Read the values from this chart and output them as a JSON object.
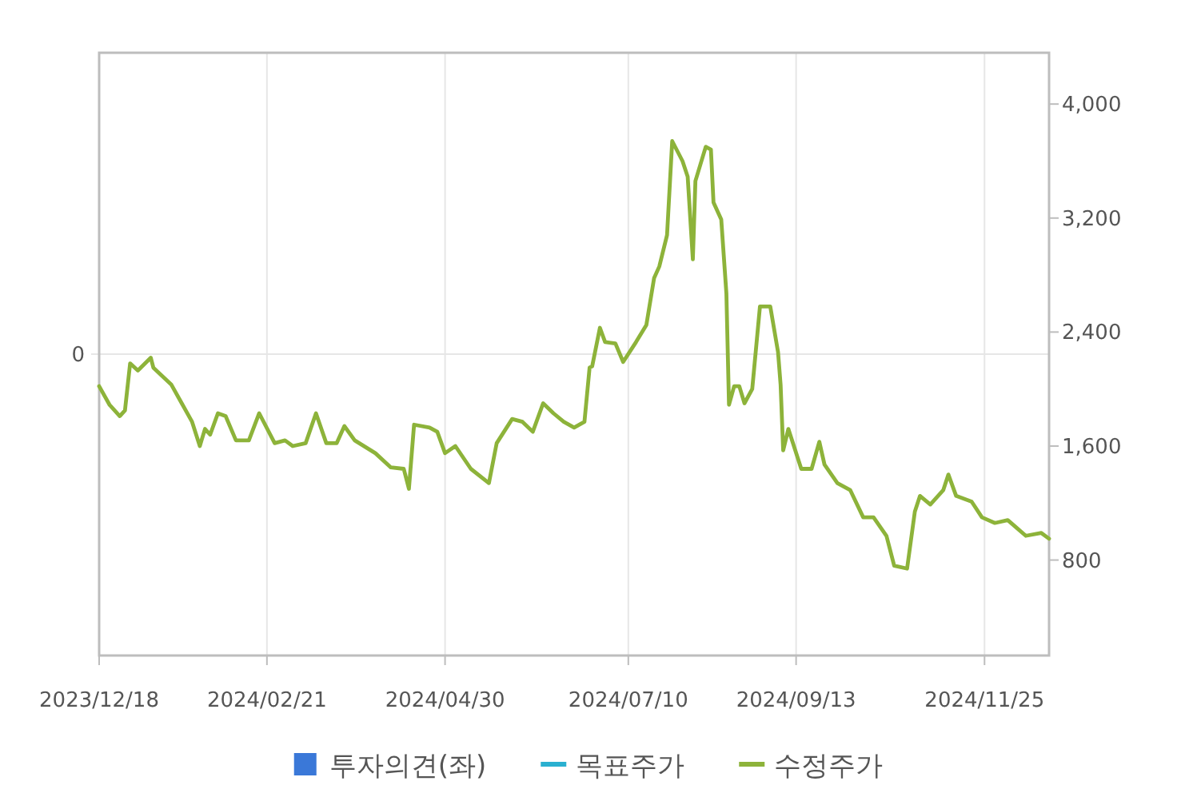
{
  "chart_data": {
    "type": "line",
    "x": [
      "2023-12-18",
      "2023-12-22",
      "2023-12-26",
      "2023-12-28",
      "2023-12-30",
      "2024-01-02",
      "2024-01-07",
      "2024-01-08",
      "2024-01-15",
      "2024-01-19",
      "2024-01-23",
      "2024-01-26",
      "2024-01-28",
      "2024-01-30",
      "2024-02-02",
      "2024-02-05",
      "2024-02-09",
      "2024-02-14",
      "2024-02-18",
      "2024-02-24",
      "2024-02-28",
      "2024-03-02",
      "2024-03-07",
      "2024-03-11",
      "2024-03-15",
      "2024-03-19",
      "2024-03-22",
      "2024-03-26",
      "2024-04-03",
      "2024-04-09",
      "2024-04-14",
      "2024-04-16",
      "2024-04-18",
      "2024-04-24",
      "2024-04-27",
      "2024-04-30",
      "2024-05-04",
      "2024-05-10",
      "2024-05-17",
      "2024-05-20",
      "2024-05-26",
      "2024-05-30",
      "2024-06-03",
      "2024-06-07",
      "2024-06-11",
      "2024-06-15",
      "2024-06-19",
      "2024-06-23",
      "2024-06-25",
      "2024-06-26",
      "2024-06-29",
      "2024-07-01",
      "2024-07-05",
      "2024-07-08",
      "2024-07-13",
      "2024-07-17",
      "2024-07-20",
      "2024-07-22",
      "2024-07-25",
      "2024-07-27",
      "2024-07-31",
      "2024-08-02",
      "2024-08-04",
      "2024-08-05",
      "2024-08-09",
      "2024-08-11",
      "2024-08-12",
      "2024-08-15",
      "2024-08-17",
      "2024-08-18",
      "2024-08-20",
      "2024-08-22",
      "2024-08-24",
      "2024-08-27",
      "2024-08-30",
      "2024-09-03",
      "2024-09-06",
      "2024-09-07",
      "2024-09-08",
      "2024-09-10",
      "2024-09-15",
      "2024-09-19",
      "2024-09-22",
      "2024-09-24",
      "2024-09-29",
      "2024-10-04",
      "2024-10-09",
      "2024-10-13",
      "2024-10-18",
      "2024-10-21",
      "2024-10-26",
      "2024-10-29",
      "2024-10-31",
      "2024-11-04",
      "2024-11-09",
      "2024-11-11",
      "2024-11-14",
      "2024-11-20",
      "2024-11-24",
      "2024-11-29",
      "2024-12-04",
      "2024-12-11",
      "2024-12-17",
      "2024-12-20"
    ],
    "series": [
      {
        "name": "투자의견(좌)",
        "type": "bar",
        "color": "#3a78d8",
        "values": [
          null,
          null,
          null,
          null,
          null,
          null,
          null,
          null,
          null,
          null,
          null,
          null,
          null,
          null,
          null,
          null,
          null,
          null,
          null,
          null,
          null,
          null,
          null,
          null,
          null,
          null,
          null,
          null,
          null,
          null,
          null,
          null,
          null,
          null,
          null,
          null,
          null,
          null,
          null,
          null,
          null,
          null,
          null,
          null,
          null,
          null,
          null,
          null,
          null,
          null,
          null,
          null,
          null,
          null,
          null,
          null,
          null,
          null,
          null,
          null,
          null,
          null,
          null,
          null,
          null,
          null,
          null,
          null,
          null,
          null,
          null,
          null,
          null,
          null,
          null,
          null,
          null,
          null,
          null,
          null,
          null,
          null,
          null,
          null,
          null,
          null,
          null,
          null,
          null,
          null,
          null,
          null,
          null,
          null,
          null,
          null,
          null,
          null,
          null,
          null,
          null,
          null,
          null,
          null
        ]
      },
      {
        "name": "목표주가",
        "axis": "y2",
        "color": "#2ab0d0",
        "values": [
          null,
          null,
          null,
          null,
          null,
          null,
          null,
          null,
          null,
          null,
          null,
          null,
          null,
          null,
          null,
          null,
          null,
          null,
          null,
          null,
          null,
          null,
          null,
          null,
          null,
          null,
          null,
          null,
          null,
          null,
          null,
          null,
          null,
          null,
          null,
          null,
          null,
          null,
          null,
          null,
          null,
          null,
          null,
          null,
          null,
          null,
          null,
          null,
          null,
          null,
          null,
          null,
          null,
          null,
          null,
          null,
          null,
          null,
          null,
          null,
          null,
          null,
          null,
          null,
          null,
          null,
          null,
          null,
          null,
          null,
          null,
          null,
          null,
          null,
          null,
          null,
          null,
          null,
          null,
          null,
          null,
          null,
          null,
          null,
          null,
          null,
          null,
          null,
          null,
          null,
          null,
          null,
          null,
          null,
          null,
          null,
          null,
          null,
          null,
          null,
          null,
          null,
          null,
          null
        ]
      },
      {
        "name": "수정주가",
        "axis": "y2",
        "color": "#8db33a",
        "values": [
          2020,
          1890,
          1810,
          1850,
          2180,
          2130,
          2220,
          2150,
          2030,
          1900,
          1770,
          1600,
          1720,
          1680,
          1830,
          1810,
          1640,
          1640,
          1830,
          1620,
          1640,
          1600,
          1620,
          1830,
          1620,
          1620,
          1740,
          1640,
          1550,
          1450,
          1440,
          1300,
          1750,
          1730,
          1700,
          1550,
          1600,
          1440,
          1340,
          1620,
          1790,
          1770,
          1700,
          1900,
          1830,
          1770,
          1730,
          1770,
          2150,
          2160,
          2430,
          2330,
          2320,
          2190,
          2330,
          2450,
          2780,
          2860,
          3080,
          3740,
          3600,
          3490,
          2910,
          3460,
          3700,
          3680,
          3310,
          3190,
          2670,
          1890,
          2020,
          2020,
          1900,
          2000,
          2580,
          2580,
          2260,
          2030,
          1570,
          1720,
          1440,
          1440,
          1630,
          1470,
          1340,
          1290,
          1100,
          1100,
          970,
          760,
          740,
          1140,
          1250,
          1190,
          1290,
          1400,
          1250,
          1210,
          1100,
          1060,
          1080,
          970,
          990,
          950
        ]
      }
    ],
    "xlim": [
      "2023-12-18",
      "2024-12-20"
    ],
    "xticks": [
      {
        "value": "2023-12-18",
        "label": "2023/12/18"
      },
      {
        "value": "2024-02-21",
        "label": "2024/02/21"
      },
      {
        "value": "2024-04-30",
        "label": "2024/04/30"
      },
      {
        "value": "2024-07-10",
        "label": "2024/07/10"
      },
      {
        "value": "2024-09-13",
        "label": "2024/09/13"
      },
      {
        "value": "2024-11-25",
        "label": "2024/11/25"
      }
    ],
    "y2lim": [
      130,
      4360
    ],
    "y2ticks": [
      {
        "value": 800,
        "label": "800"
      },
      {
        "value": 1600,
        "label": "1,600"
      },
      {
        "value": 2400,
        "label": "2,400"
      },
      {
        "value": 3200,
        "label": "3,200"
      },
      {
        "value": 4000,
        "label": "4,000"
      }
    ],
    "annotations": [
      "0"
    ],
    "grid": "x",
    "legend": "bottom"
  }
}
